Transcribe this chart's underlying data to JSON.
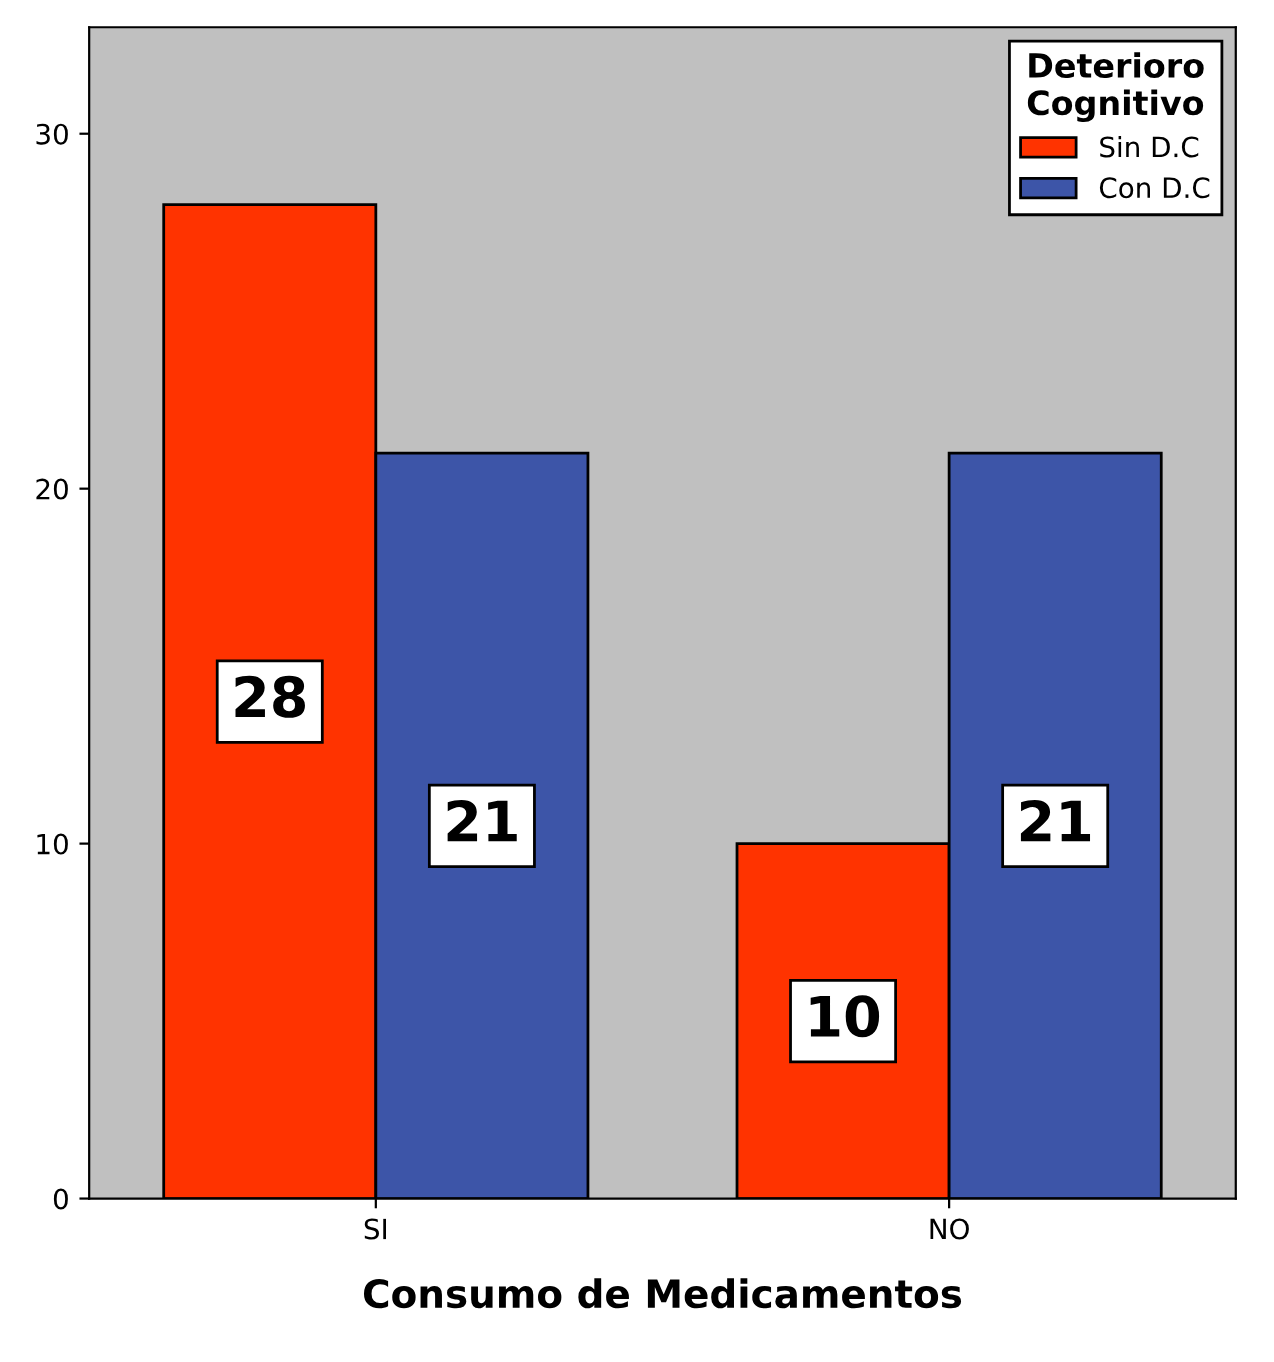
{
  "chart_data": {
    "type": "bar",
    "xlabel": "Consumo de Medicamentos",
    "categories": [
      "SI",
      "NO"
    ],
    "series": [
      {
        "name": "Sin D.C",
        "color": "#ff3300",
        "values": [
          28,
          10
        ]
      },
      {
        "name": "Con D.C",
        "color": "#3d55a8",
        "values": [
          21,
          21
        ]
      }
    ],
    "ylim": [
      0,
      33
    ],
    "yticks": [
      0,
      10,
      20,
      30
    ],
    "grid": false,
    "legend": "top right",
    "legend_title": "Deterioro\nCognitivo",
    "data_labels": true
  }
}
